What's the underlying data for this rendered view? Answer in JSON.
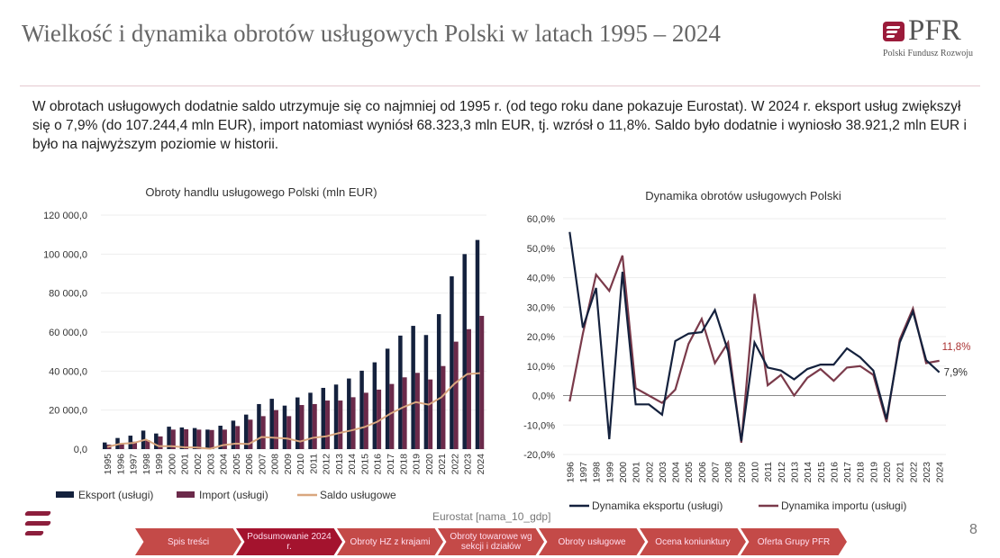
{
  "header": {
    "title": "Wielkość i dynamika obrotów usługowych Polski w latach 1995 – 2024",
    "logo_text": "PFR",
    "logo_sub": "Polski Fundusz Rozwoju"
  },
  "intro": "W obrotach usługowych dodatnie saldo utrzymuje się co najmniej od 1995 r. (od tego roku dane pokazuje Eurostat). W 2024 r. eksport usług zwiększył się o 7,9% (do 107.244,4 mln EUR), import natomiast wyniósł 68.323,3 mln EUR, tj. wzrósł o 11,8%. Saldo było dodatnie i wyniosło 38.921,2 mln EUR i było na najwyższym poziomie w historii.",
  "chart_data": [
    {
      "type": "bar",
      "title": "Obroty handlu usługowego Polski (mln EUR)",
      "ylim": [
        0,
        120000
      ],
      "yticks": [
        "0,0",
        "20 000,0",
        "40 000,0",
        "60 000,0",
        "80 000,0",
        "100 000,0",
        "120 000,0"
      ],
      "categories": [
        "1995",
        "1996",
        "1997",
        "1998",
        "1999",
        "2000",
        "2001",
        "2002",
        "2003",
        "2004",
        "2005",
        "2006",
        "2007",
        "2008",
        "2009",
        "2010",
        "2011",
        "2012",
        "2013",
        "2014",
        "2015",
        "2016",
        "2017",
        "2018",
        "2019",
        "2020",
        "2021",
        "2022",
        "2023",
        "2024"
      ],
      "series": [
        {
          "name": "Eksport (usługi)",
          "kind": "bar",
          "color": "#14213d",
          "values": [
            3400,
            5700,
            6900,
            9500,
            8000,
            11500,
            11100,
            10800,
            10000,
            12000,
            14600,
            17700,
            23100,
            25800,
            22300,
            26500,
            28900,
            31400,
            33100,
            36200,
            40200,
            44500,
            51500,
            58200,
            63200,
            58500,
            69200,
            88600,
            100000,
            107244.4
          ]
        },
        {
          "name": "Import (usługi)",
          "kind": "bar",
          "color": "#6b2a4a",
          "values": [
            2300,
            3000,
            3800,
            4600,
            6500,
            10000,
            10200,
            10000,
            9800,
            10000,
            11800,
            15100,
            16900,
            20000,
            16900,
            22600,
            23100,
            24900,
            24900,
            26600,
            28900,
            30500,
            33400,
            36800,
            39100,
            35700,
            42600,
            55100,
            61500,
            68323.3
          ]
        },
        {
          "name": "Saldo usługowe",
          "kind": "line",
          "color": "#d9a77f",
          "values": [
            1100,
            2700,
            3100,
            4900,
            1500,
            1500,
            900,
            800,
            200,
            2000,
            2800,
            2600,
            6200,
            5800,
            5400,
            3900,
            5800,
            6500,
            8200,
            9600,
            11300,
            14000,
            18100,
            21400,
            24100,
            22800,
            26600,
            33500,
            38500,
            38921.2
          ]
        }
      ]
    },
    {
      "type": "line",
      "title": "Dynamika obrotów usługowych Polski",
      "ylim": [
        -20,
        60
      ],
      "yticks": [
        "-20,0%",
        "-10,0%",
        "0,0%",
        "10,0%",
        "20,0%",
        "30,0%",
        "40,0%",
        "50,0%",
        "60,0%"
      ],
      "categories": [
        "1996",
        "1997",
        "1998",
        "1999",
        "2000",
        "2001",
        "2002",
        "2003",
        "2004",
        "2005",
        "2006",
        "2007",
        "2008",
        "2009",
        "2010",
        "2011",
        "2012",
        "2013",
        "2014",
        "2015",
        "2016",
        "2017",
        "2018",
        "2019",
        "2020",
        "2021",
        "2022",
        "2023",
        "2024"
      ],
      "series": [
        {
          "name": "Dynamika eksportu (usługi)",
          "color": "#14213d",
          "values": [
            55.5,
            23,
            36.5,
            -14.8,
            42,
            -3,
            -3,
            -6.5,
            18.5,
            21,
            21.5,
            29,
            15,
            -15.5,
            18,
            9.5,
            8.5,
            5.5,
            9,
            10.5,
            10.5,
            16,
            13,
            8.5,
            -8,
            18,
            28.5,
            12,
            7.9
          ],
          "end_label": "7,9%"
        },
        {
          "name": "Dynamika importu (usługi)",
          "color": "#7a3a4a",
          "values": [
            -2,
            21,
            41,
            35.5,
            47.5,
            2.5,
            0,
            -2.5,
            2,
            17.5,
            26,
            11,
            18,
            -16,
            34.5,
            3.5,
            7,
            0,
            6,
            9,
            5,
            9.5,
            10,
            7,
            -9,
            19,
            29.5,
            11,
            11.8
          ],
          "end_label": "11,8%"
        }
      ]
    }
  ],
  "source": "Eurostat [nama_10_gdp]",
  "page_number": "8",
  "nav": [
    {
      "label": "Spis treści",
      "active": false
    },
    {
      "label": "Podsumowanie 2024 r.",
      "active": true
    },
    {
      "label": "Obroty HZ z krajami",
      "active": false
    },
    {
      "label": "Obroty towarowe wg sekcji i działów",
      "active": false
    },
    {
      "label": "Obroty usługowe",
      "active": false
    },
    {
      "label": "Ocena koniunktury",
      "active": false
    },
    {
      "label": "Oferta Grupy PFR",
      "active": false
    }
  ]
}
